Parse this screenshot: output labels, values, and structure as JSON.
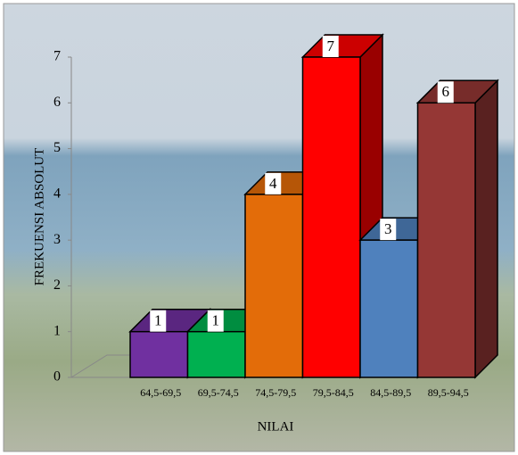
{
  "chart_data": {
    "type": "bar3d",
    "categories": [
      "64,5-69,5",
      "69,5-74,5",
      "74,5-79,5",
      "79,5-84,5",
      "84,5-89,5",
      "89,5-94,5"
    ],
    "values": [
      1,
      1,
      4,
      7,
      3,
      6
    ],
    "colors": [
      "#7030a0",
      "#00b050",
      "#e36c09",
      "#ff0000",
      "#4f81bd",
      "#953735"
    ],
    "ylim": [
      0,
      7
    ],
    "yticks": [
      0,
      1,
      2,
      3,
      4,
      5,
      6,
      7
    ],
    "ylabel": "FREKUENSI ABSOLUT",
    "xlabel": "NILAI"
  }
}
